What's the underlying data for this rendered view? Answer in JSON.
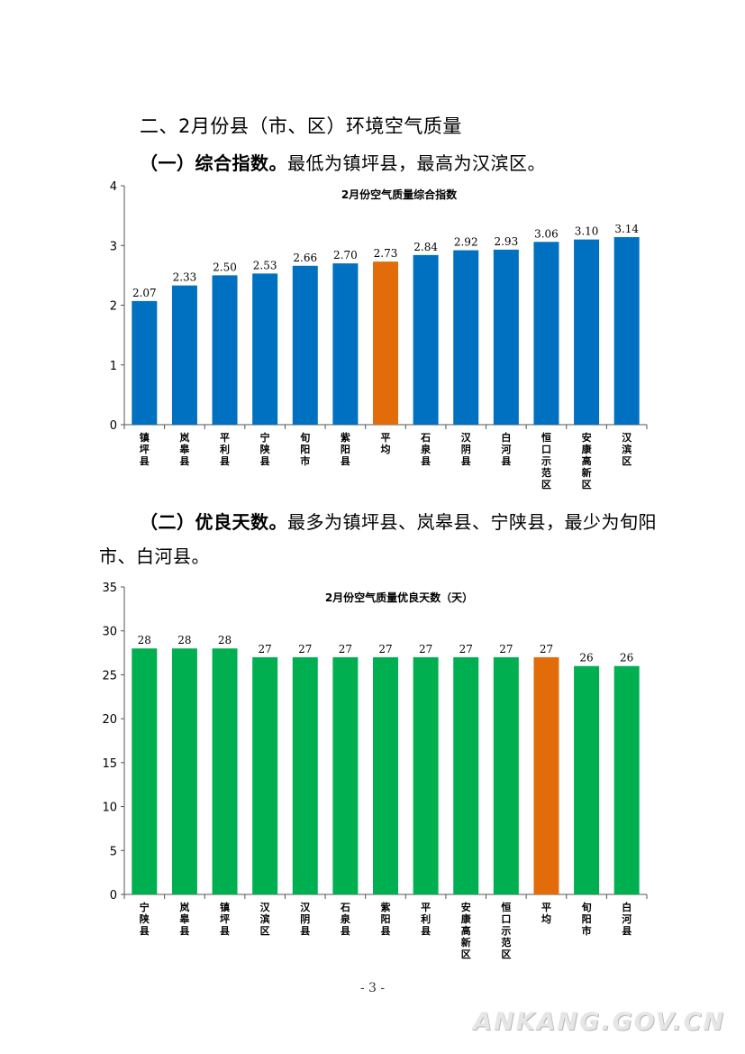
{
  "section_title": "二、2月份县（市、区）环境空气质量",
  "para1": {
    "label": "（一）综合指数。",
    "text": "最低为镇坪县，最高为汉滨区。"
  },
  "para2": {
    "label": "（二）优良天数。",
    "text": "最多为镇坪县、岚皋县、宁陕县，最少为旬阳市、白河县。"
  },
  "page_number": "- 3 -",
  "watermark": "ANKANG.GOV.CN",
  "colors": {
    "county": "#0070C0",
    "average": "#E36C0A",
    "good_days": "#00B050"
  },
  "chart_data": [
    {
      "type": "bar",
      "title": "2月份空气质量综合指数",
      "categories": [
        "镇坪县",
        "岚皋县",
        "平利县",
        "宁陕县",
        "旬阳市",
        "紫阳县",
        "平均",
        "石泉县",
        "汉阴县",
        "白河县",
        "恒口示范区",
        "安康高新区",
        "汉滨区"
      ],
      "values": [
        2.07,
        2.33,
        2.5,
        2.53,
        2.66,
        2.7,
        2.73,
        2.84,
        2.92,
        2.93,
        3.06,
        3.1,
        3.14
      ],
      "value_labels": [
        "2.07",
        "2.33",
        "2.50",
        "2.53",
        "2.66",
        "2.70",
        "2.73",
        "2.84",
        "2.92",
        "2.93",
        "3.06",
        "3.10",
        "3.14"
      ],
      "highlight": "平均",
      "ylim": [
        0,
        4
      ],
      "yticks": [
        "0",
        "1",
        "2",
        "3",
        "4"
      ],
      "grid": false
    },
    {
      "type": "bar",
      "title": "2月份空气质量优良天数（天）",
      "categories": [
        "宁陕县",
        "岚皋县",
        "镇坪县",
        "汉滨区",
        "汉阴县",
        "石泉县",
        "紫阳县",
        "平利县",
        "安康高新区",
        "恒口示范区",
        "平均",
        "旬阳市",
        "白河县"
      ],
      "values": [
        28,
        28,
        28,
        27,
        27,
        27,
        27,
        27,
        27,
        27,
        27,
        26,
        26
      ],
      "value_labels": [
        "28",
        "28",
        "28",
        "27",
        "27",
        "27",
        "27",
        "27",
        "27",
        "27",
        "27",
        "26",
        "26"
      ],
      "highlight": "平均",
      "ylim": [
        0,
        35
      ],
      "yticks": [
        "0",
        "5",
        "10",
        "15",
        "20",
        "25",
        "30",
        "35"
      ],
      "grid": false
    }
  ]
}
